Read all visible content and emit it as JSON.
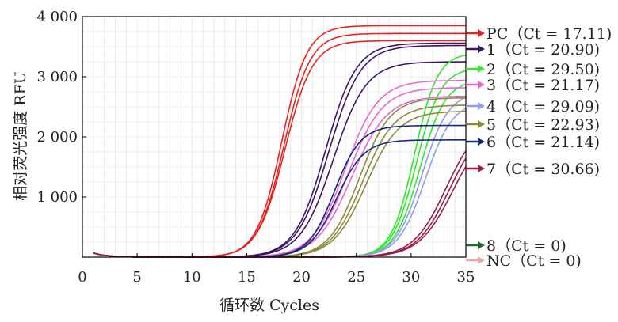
{
  "chart_data": {
    "type": "line",
    "xlabel": "循环数 Cycles",
    "ylabel": "相对荧光强度 RFU",
    "xlim": [
      0,
      35
    ],
    "ylim": [
      0,
      4000
    ],
    "x_ticks": [
      0,
      5,
      10,
      15,
      20,
      25,
      30,
      35
    ],
    "x_tick_labels": [
      "0",
      "5",
      "10",
      "15",
      "20",
      "25",
      "30",
      "35"
    ],
    "y_ticks": [
      1000,
      2000,
      3000,
      4000
    ],
    "y_tick_labels": [
      "1 000",
      "2 000",
      "3 000",
      "4 000"
    ],
    "grid": true,
    "legend_position": "right",
    "series": [
      {
        "name": "PC",
        "ct_label": "PC（Ct = 17.11)",
        "color": "#e8231e",
        "curves": [
          [
            18.2,
            3850,
            1.15
          ],
          [
            18.4,
            3720,
            1.2
          ],
          [
            18.5,
            3600,
            1.25
          ]
        ]
      },
      {
        "name": "1",
        "ct_label": "1（Ct = 20.90)",
        "color": "#3d1566",
        "curves": [
          [
            22.2,
            3560,
            1.4
          ],
          [
            22.5,
            3520,
            1.45
          ],
          [
            22.9,
            3250,
            1.5
          ]
        ]
      },
      {
        "name": "2",
        "ct_label": "2（Ct = 29.50)",
        "color": "#2ee82a",
        "curves": [
          [
            30.3,
            3400,
            1.05
          ],
          [
            30.5,
            3150,
            1.1
          ],
          [
            30.8,
            2950,
            1.15
          ]
        ]
      },
      {
        "name": "3",
        "ct_label": "3（Ct = 21.17)",
        "color": "#e468d8",
        "curves": [
          [
            24.0,
            2940,
            1.5
          ],
          [
            24.3,
            2820,
            1.55
          ],
          [
            24.6,
            2680,
            1.6
          ]
        ]
      },
      {
        "name": "4",
        "ct_label": "4（Ct = 29.09)",
        "color": "#8c9fe8",
        "curves": [
          [
            31.0,
            2750,
            1.2
          ],
          [
            31.3,
            2600,
            1.25
          ]
        ]
      },
      {
        "name": "5",
        "ct_label": "5（Ct = 22.93)",
        "color": "#8c8b3a",
        "curves": [
          [
            25.3,
            2650,
            1.4
          ],
          [
            25.6,
            2530,
            1.45
          ],
          [
            25.9,
            2430,
            1.5
          ]
        ]
      },
      {
        "name": "6",
        "ct_label": "6（Ct = 21.14)",
        "color": "#142a78",
        "curves": [
          [
            23.0,
            2190,
            1.2
          ],
          [
            23.2,
            1950,
            1.25
          ]
        ]
      },
      {
        "name": "7",
        "ct_label": "7（Ct = 30.66)",
        "color": "#9b1b4e",
        "curves": [
          [
            33.2,
            2300,
            1.5
          ],
          [
            33.5,
            2250,
            1.5
          ],
          [
            33.8,
            2200,
            1.55
          ]
        ]
      },
      {
        "name": "8",
        "ct_label": "8（Ct = 0)",
        "color": "#1f6b2a",
        "curves": []
      },
      {
        "name": "NC",
        "ct_label": "NC（Ct = 0)",
        "color": "#e8a7a0",
        "curves": []
      }
    ]
  }
}
